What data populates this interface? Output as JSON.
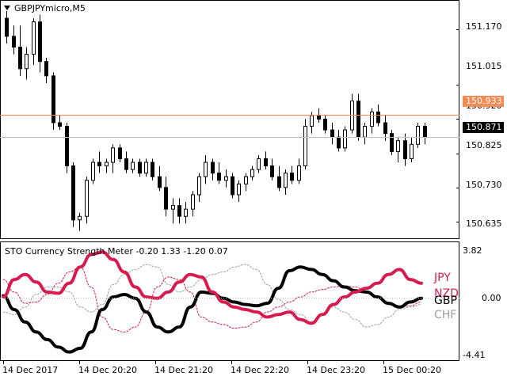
{
  "chart_window": {
    "title": "GBPJPYmicro,M5",
    "colors": {
      "background": "#ffffff",
      "frame": "#000000",
      "candle": "#000000",
      "bid_line": "#f58b55",
      "grid": "#c0c0c0"
    }
  },
  "price_axis": {
    "ticks": [
      "151.170",
      "151.015",
      "150.920",
      "150.825",
      "150.730",
      "150.635"
    ],
    "tick_values": [
      151.17,
      151.015,
      150.92,
      150.825,
      150.73,
      150.635
    ]
  },
  "price_badges": {
    "bid_line": {
      "label": "150.933",
      "value": 150.933,
      "bg": "#f58b55",
      "fg": "#ffffff"
    },
    "last_price": {
      "label": "150.871",
      "value": 150.871,
      "bg": "#000000",
      "fg": "#ffffff"
    }
  },
  "indicator": {
    "title": "STO Currency Strength Meter  -0.20 1.33 -1.20 0.07",
    "axis_top": "3.82",
    "axis_mid": "0.00",
    "axis_bottom": "-4.41",
    "currencies": [
      {
        "name": "JPY",
        "color": "#d81b4f"
      },
      {
        "name": "NZD",
        "color": "#d81b4f"
      },
      {
        "name": "GBP",
        "color": "#000000"
      },
      {
        "name": "CHF",
        "color": "#a0a0a0"
      }
    ]
  },
  "time_axis": [
    "14 Dec 2017",
    "14 Dec 20:20",
    "14 Dec 21:20",
    "14 Dec 22:20",
    "14 Dec 23:20",
    "15 Dec 00:20"
  ],
  "chart_data": {
    "type": "candlestick",
    "symbol": "GBPJPYmicro",
    "timeframe": "M5",
    "ylim": [
      150.6,
      151.22
    ],
    "candles": [
      [
        151.2,
        151.22,
        151.13,
        151.15
      ],
      [
        151.15,
        151.18,
        151.1,
        151.12
      ],
      [
        151.12,
        151.18,
        151.04,
        151.06
      ],
      [
        151.06,
        151.12,
        151.03,
        151.1
      ],
      [
        151.1,
        151.2,
        151.07,
        151.19
      ],
      [
        151.19,
        151.21,
        151.05,
        151.08
      ],
      [
        151.08,
        151.09,
        151.02,
        151.04
      ],
      [
        151.04,
        151.05,
        150.89,
        150.91
      ],
      [
        150.91,
        150.93,
        150.89,
        150.9
      ],
      [
        150.9,
        150.91,
        150.77,
        150.79
      ],
      [
        150.79,
        150.8,
        150.62,
        150.64
      ],
      [
        150.64,
        150.66,
        150.61,
        150.65
      ],
      [
        150.65,
        150.76,
        150.63,
        150.75
      ],
      [
        150.75,
        150.81,
        150.74,
        150.8
      ],
      [
        150.8,
        150.83,
        150.77,
        150.79
      ],
      [
        150.79,
        150.81,
        150.77,
        150.8
      ],
      [
        150.8,
        150.85,
        150.77,
        150.84
      ],
      [
        150.84,
        150.85,
        150.8,
        150.81
      ],
      [
        150.81,
        150.83,
        150.77,
        150.78
      ],
      [
        150.78,
        150.81,
        150.77,
        150.8
      ],
      [
        150.8,
        150.81,
        150.76,
        150.77
      ],
      [
        150.77,
        150.81,
        150.76,
        150.8
      ],
      [
        150.8,
        150.81,
        150.75,
        150.76
      ],
      [
        150.76,
        150.79,
        150.72,
        150.73
      ],
      [
        150.73,
        150.76,
        150.65,
        150.67
      ],
      [
        150.67,
        150.7,
        150.63,
        150.68
      ],
      [
        150.68,
        150.7,
        150.63,
        150.65
      ],
      [
        150.65,
        150.69,
        150.63,
        150.67
      ],
      [
        150.67,
        150.72,
        150.65,
        150.71
      ],
      [
        150.71,
        150.77,
        150.69,
        150.76
      ],
      [
        150.76,
        150.82,
        150.74,
        150.8
      ],
      [
        150.8,
        150.81,
        150.75,
        150.77
      ],
      [
        150.77,
        150.8,
        150.74,
        150.75
      ],
      [
        150.75,
        150.78,
        150.73,
        150.76
      ],
      [
        150.76,
        150.77,
        150.7,
        150.71
      ],
      [
        150.71,
        150.75,
        150.69,
        150.74
      ],
      [
        150.74,
        150.77,
        150.72,
        150.76
      ],
      [
        150.76,
        150.79,
        150.75,
        150.78
      ],
      [
        150.78,
        150.82,
        150.77,
        150.81
      ],
      [
        150.81,
        150.83,
        150.78,
        150.79
      ],
      [
        150.79,
        150.81,
        150.75,
        150.76
      ],
      [
        150.76,
        150.79,
        150.72,
        150.73
      ],
      [
        150.73,
        150.78,
        150.71,
        150.77
      ],
      [
        150.77,
        150.79,
        150.74,
        150.75
      ],
      [
        150.75,
        150.81,
        150.74,
        150.79
      ],
      [
        150.79,
        150.92,
        150.78,
        150.9
      ],
      [
        150.9,
        150.94,
        150.88,
        150.93
      ],
      [
        150.93,
        150.95,
        150.91,
        150.92
      ],
      [
        150.92,
        150.93,
        150.88,
        150.89
      ],
      [
        150.89,
        150.91,
        150.85,
        150.87
      ],
      [
        150.87,
        150.89,
        150.83,
        150.84
      ],
      [
        150.84,
        150.9,
        150.83,
        150.89
      ],
      [
        150.89,
        150.99,
        150.88,
        150.97
      ],
      [
        150.97,
        150.99,
        150.86,
        150.87
      ],
      [
        150.87,
        150.91,
        150.85,
        150.9
      ],
      [
        150.9,
        150.95,
        150.88,
        150.94
      ],
      [
        150.94,
        150.96,
        150.9,
        150.91
      ],
      [
        150.91,
        150.93,
        150.86,
        150.88
      ],
      [
        150.88,
        150.89,
        150.82,
        150.83
      ],
      [
        150.83,
        150.87,
        150.8,
        150.86
      ],
      [
        150.86,
        150.88,
        150.79,
        150.81
      ],
      [
        150.81,
        150.87,
        150.8,
        150.85
      ],
      [
        150.85,
        150.91,
        150.84,
        150.9
      ],
      [
        150.9,
        150.91,
        150.85,
        150.87
      ]
    ],
    "indicator_series": [
      {
        "name": "JPY",
        "values": [
          0.2,
          1.6,
          2.0,
          1.4,
          0.6,
          0.5,
          1.3,
          2.6,
          3.6,
          3.8,
          3.2,
          2.2,
          1.0,
          0.2,
          0.1,
          0.6,
          1.4,
          2.0,
          1.8,
          0.6,
          -0.2,
          -0.6,
          -0.8,
          -1.0,
          -1.4,
          -1.2,
          -1.0,
          -1.6,
          -1.9,
          -1.2,
          -0.4,
          0.2,
          0.6,
          0.9,
          1.3,
          2.0,
          2.4,
          1.6,
          1.3
        ]
      },
      {
        "name": "NZD",
        "values": [
          1.6,
          0.6,
          -0.3,
          -0.2,
          0.4,
          1.3,
          2.2,
          2.6,
          1.0,
          -1.4,
          -2.4,
          -2.6,
          -2.2,
          -1.0,
          1.0,
          1.8,
          1.6,
          0.6,
          -1.4,
          -1.8,
          -2.0,
          -2.3,
          -2.2,
          -1.8,
          -1.0,
          -0.6,
          -0.2,
          0.2,
          0.6,
          0.8,
          1.0,
          1.1,
          1.0,
          0.6,
          0.2,
          -0.4,
          -0.6,
          -0.5,
          -0.2
        ]
      },
      {
        "name": "GBP",
        "values": [
          0.3,
          -0.8,
          -1.8,
          -2.6,
          -3.2,
          -3.8,
          -4.2,
          -3.9,
          -2.6,
          -0.8,
          0.2,
          0.4,
          0.1,
          -1.0,
          -2.2,
          -2.6,
          -2.2,
          -0.6,
          0.6,
          0.5,
          0.1,
          -0.2,
          -0.4,
          -0.5,
          -0.3,
          0.9,
          2.3,
          2.6,
          2.4,
          2.0,
          1.5,
          1.0,
          0.7,
          0.6,
          0.2,
          -0.3,
          -0.6,
          -0.2,
          0.1
        ]
      },
      {
        "name": "CHF",
        "values": [
          -1.0,
          -1.2,
          -0.6,
          0.4,
          1.0,
          1.0,
          0.6,
          -0.6,
          -1.0,
          -0.4,
          1.2,
          2.0,
          2.4,
          2.8,
          2.6,
          1.2,
          0.6,
          1.0,
          1.6,
          2.0,
          2.2,
          2.6,
          2.8,
          2.4,
          1.2,
          0.0,
          -0.8,
          -1.2,
          -1.8,
          -1.2,
          -0.6,
          -1.0,
          -1.6,
          -2.2,
          -2.0,
          -1.4,
          -0.8,
          -0.6,
          -0.4
        ]
      }
    ],
    "indicator_ylim": [
      -4.41,
      3.82
    ]
  }
}
